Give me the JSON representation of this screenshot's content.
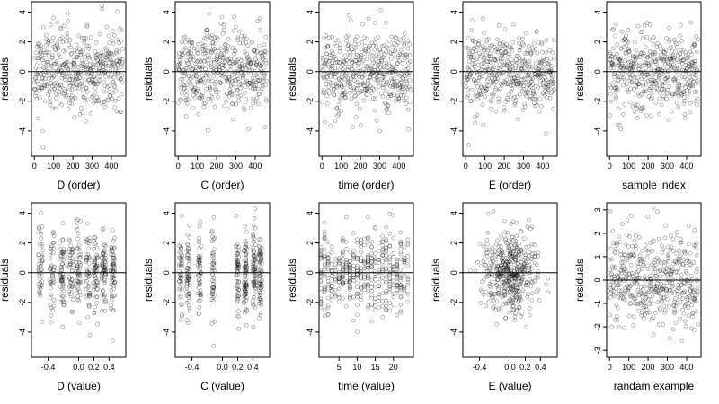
{
  "chart_data": [
    {
      "type": "scatter",
      "title": "",
      "xlabel": "D (order)",
      "ylabel": "residuals",
      "xlim": [
        -15,
        475
      ],
      "ylim": [
        -5.7,
        4.7
      ],
      "xticks": [
        0,
        100,
        200,
        300,
        400
      ],
      "yticks": [
        -4,
        -2,
        0,
        2,
        4
      ],
      "grid": false,
      "reference_line_y": 0,
      "n_points": 470,
      "spread": 1.35,
      "x_values": "uniform",
      "seed": 11
    },
    {
      "type": "scatter",
      "title": "",
      "xlabel": "C (order)",
      "ylabel": "residuals",
      "xlim": [
        -15,
        475
      ],
      "ylim": [
        -5.7,
        4.7
      ],
      "xticks": [
        0,
        100,
        200,
        300,
        400
      ],
      "yticks": [
        -4,
        -2,
        0,
        2,
        4
      ],
      "grid": false,
      "reference_line_y": 0,
      "n_points": 470,
      "spread": 1.35,
      "x_values": "uniform",
      "seed": 23
    },
    {
      "type": "scatter",
      "title": "",
      "xlabel": "time (order)",
      "ylabel": "residuals",
      "xlim": [
        -15,
        475
      ],
      "ylim": [
        -5.7,
        4.7
      ],
      "xticks": [
        0,
        100,
        200,
        300,
        400
      ],
      "yticks": [
        -4,
        -2,
        0,
        2,
        4
      ],
      "grid": false,
      "reference_line_y": 0,
      "n_points": 470,
      "spread": 1.35,
      "x_values": "uniform",
      "seed": 37
    },
    {
      "type": "scatter",
      "title": "",
      "xlabel": "E (order)",
      "ylabel": "residuals",
      "xlim": [
        -15,
        475
      ],
      "ylim": [
        -5.7,
        4.7
      ],
      "xticks": [
        0,
        100,
        200,
        300,
        400
      ],
      "yticks": [
        -4,
        -2,
        0,
        2,
        4
      ],
      "grid": false,
      "reference_line_y": 0,
      "n_points": 470,
      "spread": 1.35,
      "x_values": "uniform",
      "seed": 41
    },
    {
      "type": "scatter",
      "title": "",
      "xlabel": "sample index",
      "ylabel": "residuals",
      "xlim": [
        -15,
        475
      ],
      "ylim": [
        -5.7,
        4.7
      ],
      "xticks": [
        0,
        100,
        200,
        300,
        400
      ],
      "yticks": [
        -4,
        -2,
        0,
        2,
        4
      ],
      "grid": false,
      "reference_line_y": 0,
      "n_points": 470,
      "spread": 1.35,
      "x_values": "uniform",
      "seed": 53
    },
    {
      "type": "scatter",
      "title": "",
      "xlabel": "D (value)",
      "ylabel": "residuals",
      "xlim": [
        -0.62,
        0.62
      ],
      "ylim": [
        -5.7,
        4.7
      ],
      "xticks": [
        -0.4,
        0.0,
        0.2,
        0.4
      ],
      "xtick_labels": [
        "-0.4",
        "0.0",
        "0.2",
        "0.4"
      ],
      "yticks": [
        -4,
        -2,
        0,
        2,
        4
      ],
      "grid": false,
      "reference_line_y": 0,
      "n_points": 470,
      "spread": 1.35,
      "x_values": "clustered",
      "x_clusters": [
        -0.5,
        -0.35,
        -0.22,
        -0.1,
        0.0,
        0.12,
        0.22,
        0.33,
        0.45
      ],
      "x_jitter": 0.03,
      "seed": 61
    },
    {
      "type": "scatter",
      "title": "",
      "xlabel": "C (value)",
      "ylabel": "residuals",
      "xlim": [
        -0.62,
        0.62
      ],
      "ylim": [
        -5.7,
        4.7
      ],
      "xticks": [
        -0.4,
        0.0,
        0.2,
        0.4
      ],
      "xtick_labels": [
        "-0.4",
        "0.0",
        "0.2",
        "0.4"
      ],
      "yticks": [
        -4,
        -2,
        0,
        2,
        4
      ],
      "grid": false,
      "reference_line_y": 0,
      "n_points": 470,
      "spread": 1.35,
      "x_values": "clustered",
      "x_clusters": [
        -0.55,
        -0.45,
        -0.3,
        -0.12,
        0.2,
        0.3,
        0.42,
        0.5
      ],
      "x_jitter": 0.02,
      "seed": 67
    },
    {
      "type": "scatter",
      "title": "",
      "xlabel": "time (value)",
      "ylabel": "residuals",
      "xlim": [
        -0.5,
        25.5
      ],
      "ylim": [
        -5.7,
        4.7
      ],
      "xticks": [
        5,
        10,
        15,
        20
      ],
      "yticks": [
        -4,
        -2,
        0,
        2,
        4
      ],
      "grid": false,
      "reference_line_y": 0,
      "n_points": 470,
      "spread": 1.35,
      "x_values": "integers",
      "x_range": [
        0,
        24
      ],
      "seed": 71
    },
    {
      "type": "scatter",
      "title": "",
      "xlabel": "E (value)",
      "ylabel": "residuals",
      "xlim": [
        -0.62,
        0.62
      ],
      "ylim": [
        -5.7,
        4.7
      ],
      "xticks": [
        -0.4,
        0.0,
        0.2,
        0.4
      ],
      "xtick_labels": [
        "-0.4",
        "0.0",
        "0.2",
        "0.4"
      ],
      "yticks": [
        -4,
        -2,
        0,
        2,
        4
      ],
      "grid": false,
      "reference_line_y": 0,
      "n_points": 470,
      "spread": 1.35,
      "x_values": "normal",
      "x_sd": 0.18,
      "seed": 79
    },
    {
      "type": "scatter",
      "title": "",
      "xlabel": "randam example",
      "ylabel": "residuals",
      "xlim": [
        -15,
        475
      ],
      "ylim": [
        -3.3,
        3.3
      ],
      "xticks": [
        0,
        100,
        200,
        300,
        400
      ],
      "yticks": [
        -3,
        -2,
        -1,
        0,
        1,
        2,
        3
      ],
      "grid": false,
      "reference_line_y": 0,
      "n_points": 470,
      "spread": 1.0,
      "x_values": "uniform",
      "seed": 97
    }
  ]
}
